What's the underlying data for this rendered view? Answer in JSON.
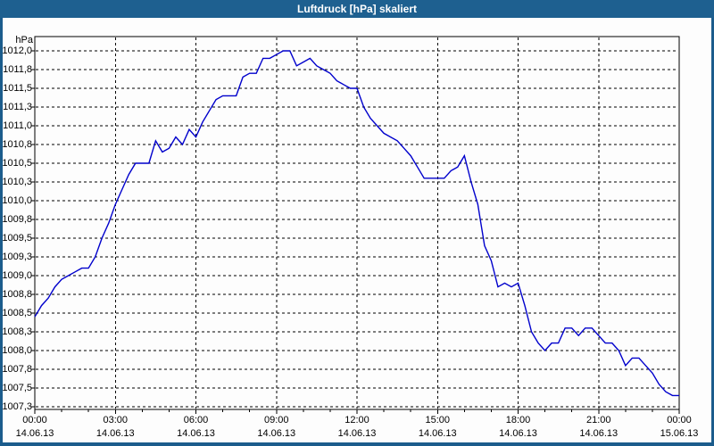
{
  "window": {
    "title": "Luftdruck [hPa] skaliert"
  },
  "colors": {
    "titlebar": "#1e6090",
    "window_border": "#1b5c8c",
    "line": "#0000cc",
    "grid": "#000000",
    "text": "#000000",
    "background": "#ffffff"
  },
  "chart_data": {
    "type": "line",
    "title": "Luftdruck [hPa] skaliert",
    "xlabel": "",
    "ylabel": "hPa",
    "grid": "dashed, horizontal every 0.25 hPa, vertical every 3 hours",
    "legend": "none",
    "ylim": [
      1007.25,
      1012.0
    ],
    "y_tick_step": 0.25,
    "y_tick_labels": [
      "1012,0",
      "1011,8",
      "1011,5",
      "1011,3",
      "1011,0",
      "1010,8",
      "1010,5",
      "1010,3",
      "1010,0",
      "1009,8",
      "1009,5",
      "1009,3",
      "1009,0",
      "1008,8",
      "1008,5",
      "1008,3",
      "1008,0",
      "1007,8",
      "1007,5",
      "1007,3"
    ],
    "x_span_hours": 24,
    "x_minor_tick_hours": 1,
    "x_major_tick_hours": 3,
    "x_ticks": [
      {
        "time": "00:00",
        "date": "14.06.13"
      },
      {
        "time": "03:00",
        "date": "14.06.13"
      },
      {
        "time": "06:00",
        "date": "14.06.13"
      },
      {
        "time": "09:00",
        "date": "14.06.13"
      },
      {
        "time": "12:00",
        "date": "14.06.13"
      },
      {
        "time": "15:00",
        "date": "14.06.13"
      },
      {
        "time": "18:00",
        "date": "14.06.13"
      },
      {
        "time": "21:00",
        "date": "14.06.13"
      },
      {
        "time": "00:00",
        "date": "15.06.13"
      }
    ],
    "series": [
      {
        "name": "Luftdruck [hPa]",
        "sample_step_minutes": 15,
        "start_time": "00:00",
        "values": [
          1008.45,
          1008.6,
          1008.7,
          1008.85,
          1008.95,
          1009.0,
          1009.05,
          1009.1,
          1009.1,
          1009.25,
          1009.5,
          1009.7,
          1009.95,
          1010.15,
          1010.35,
          1010.5,
          1010.5,
          1010.5,
          1010.8,
          1010.65,
          1010.7,
          1010.85,
          1010.75,
          1010.95,
          1010.85,
          1011.05,
          1011.2,
          1011.35,
          1011.4,
          1011.4,
          1011.4,
          1011.65,
          1011.7,
          1011.7,
          1011.9,
          1011.9,
          1011.95,
          1012.0,
          1012.0,
          1011.8,
          1011.85,
          1011.9,
          1011.8,
          1011.75,
          1011.7,
          1011.6,
          1011.55,
          1011.5,
          1011.5,
          1011.25,
          1011.1,
          1011.0,
          1010.9,
          1010.85,
          1010.8,
          1010.7,
          1010.6,
          1010.45,
          1010.3,
          1010.3,
          1010.3,
          1010.3,
          1010.4,
          1010.45,
          1010.6,
          1010.25,
          1009.95,
          1009.4,
          1009.2,
          1008.85,
          1008.9,
          1008.85,
          1008.9,
          1008.6,
          1008.25,
          1008.1,
          1008.0,
          1008.1,
          1008.1,
          1008.3,
          1008.3,
          1008.2,
          1008.3,
          1008.3,
          1008.2,
          1008.1,
          1008.1,
          1008.0,
          1007.8,
          1007.9,
          1007.9,
          1007.8,
          1007.7,
          1007.55,
          1007.45,
          1007.4,
          1007.4
        ]
      }
    ]
  }
}
